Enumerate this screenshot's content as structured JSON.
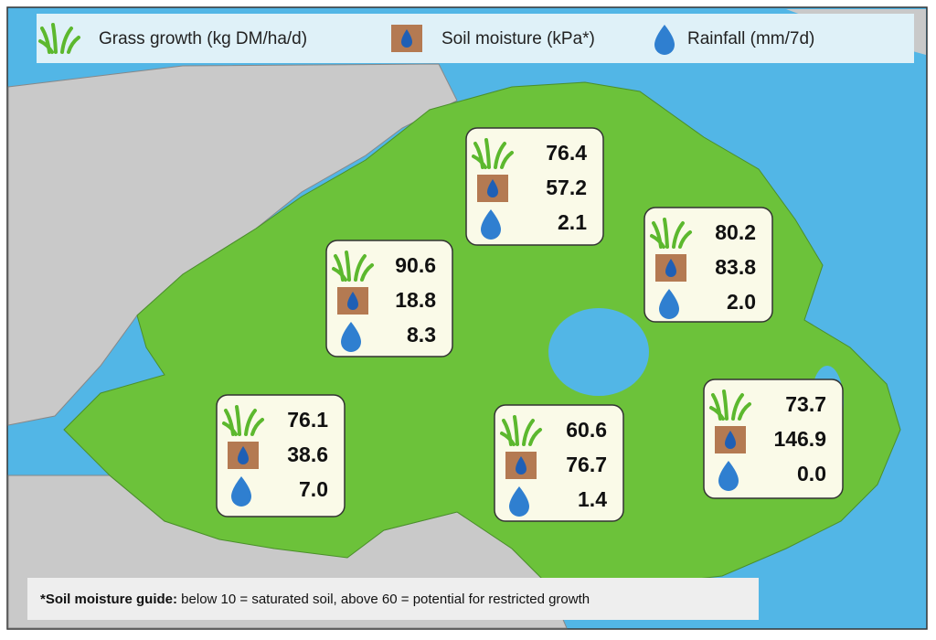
{
  "legend": [
    {
      "icon": "grass",
      "label": "Grass growth (kg DM/ha/d)"
    },
    {
      "icon": "soil",
      "label": "Soil moisture (kPa*)"
    },
    {
      "icon": "rain",
      "label": "Rainfall (mm/7d)"
    }
  ],
  "regions": [
    {
      "grass": "76.4",
      "soil": "57.2",
      "rain": "2.1"
    },
    {
      "grass": "90.6",
      "soil": "18.8",
      "rain": "8.3"
    },
    {
      "grass": "80.2",
      "soil": "83.8",
      "rain": "2.0"
    },
    {
      "grass": "76.1",
      "soil": "38.6",
      "rain": "7.0"
    },
    {
      "grass": "60.6",
      "soil": "76.7",
      "rain": "1.4"
    },
    {
      "grass": "73.7",
      "soil": "146.9",
      "rain": "0.0"
    }
  ],
  "footnote": {
    "bold": "*Soil moisture guide:",
    "text": " below 10 = saturated soil, above 60 = potential for restricted growth"
  }
}
